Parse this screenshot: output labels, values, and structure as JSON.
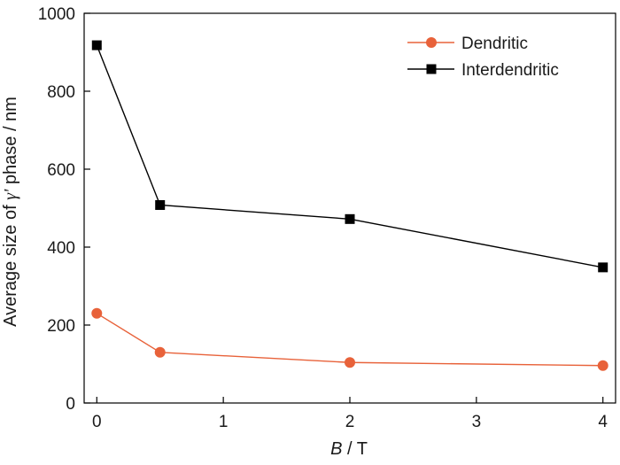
{
  "chart_data": {
    "type": "line",
    "xlabel_var": "B",
    "xlabel_unit": " / T",
    "ylabel_prefix": "Average size of ",
    "ylabel_symbol": "γ'",
    "ylabel_suffix": " phase / nm",
    "xlim": [
      -0.1,
      4.1
    ],
    "ylim": [
      0,
      1000
    ],
    "xticks": [
      0,
      1,
      2,
      3,
      4
    ],
    "yticks": [
      0,
      200,
      400,
      600,
      800,
      1000
    ],
    "grid": false,
    "legend_position": "top-right",
    "series": [
      {
        "name": "Dendritic",
        "marker": "circle",
        "color": "#e8623a",
        "x": [
          0,
          0.5,
          2,
          4
        ],
        "y": [
          230,
          130,
          104,
          96
        ]
      },
      {
        "name": "Interdendritic",
        "marker": "square",
        "color": "#000000",
        "x": [
          0,
          0.5,
          2,
          4
        ],
        "y": [
          918,
          508,
          472,
          348
        ]
      }
    ]
  }
}
